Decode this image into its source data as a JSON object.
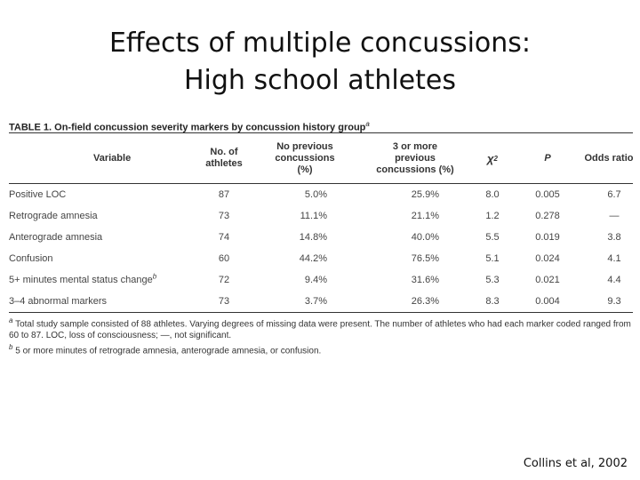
{
  "slide": {
    "title_line1": "Effects of multiple concussions:",
    "title_line2": "High school athletes",
    "citation": "Collins et al, 2002"
  },
  "table": {
    "caption": "TABLE 1.  On-field concussion severity markers by concussion history group",
    "caption_note": "a",
    "headers": {
      "variable": "Variable",
      "athletes": "No. of athletes",
      "no_previous": "No previous concussions (%)",
      "three_or_more": "3 or more previous concussions (%)",
      "chi2": "χ",
      "chi2_sup": "2",
      "p": "P",
      "odds_ratio": "Odds ratio"
    },
    "rows": [
      {
        "variable": "Positive LOC",
        "note": "",
        "athletes": "87",
        "no_previous": "5.0%",
        "three_or_more": "25.9%",
        "chi2": "8.0",
        "p": "0.005",
        "odds_ratio": "6.7"
      },
      {
        "variable": "Retrograde amnesia",
        "note": "",
        "athletes": "73",
        "no_previous": "11.1%",
        "three_or_more": "21.1%",
        "chi2": "1.2",
        "p": "0.278",
        "odds_ratio": "—"
      },
      {
        "variable": "Anterograde amnesia",
        "note": "",
        "athletes": "74",
        "no_previous": "14.8%",
        "three_or_more": "40.0%",
        "chi2": "5.5",
        "p": "0.019",
        "odds_ratio": "3.8"
      },
      {
        "variable": "Confusion",
        "note": "",
        "athletes": "60",
        "no_previous": "44.2%",
        "three_or_more": "76.5%",
        "chi2": "5.1",
        "p": "0.024",
        "odds_ratio": "4.1"
      },
      {
        "variable": "5+ minutes mental status change",
        "note": "b",
        "athletes": "72",
        "no_previous": "9.4%",
        "three_or_more": "31.6%",
        "chi2": "5.3",
        "p": "0.021",
        "odds_ratio": "4.4"
      },
      {
        "variable": "3–4 abnormal markers",
        "note": "",
        "athletes": "73",
        "no_previous": "3.7%",
        "three_or_more": "26.3%",
        "chi2": "8.3",
        "p": "0.004",
        "odds_ratio": "9.3"
      }
    ],
    "footnotes": [
      {
        "mark": "a",
        "text": "Total study sample consisted of 88 athletes. Varying degrees of missing data were present. The number of athletes who had each marker coded ranged from 60 to 87. LOC, loss of consciousness; —, not significant."
      },
      {
        "mark": "b",
        "text": "5 or more minutes of retrograde amnesia, anterograde amnesia, or confusion."
      }
    ]
  }
}
